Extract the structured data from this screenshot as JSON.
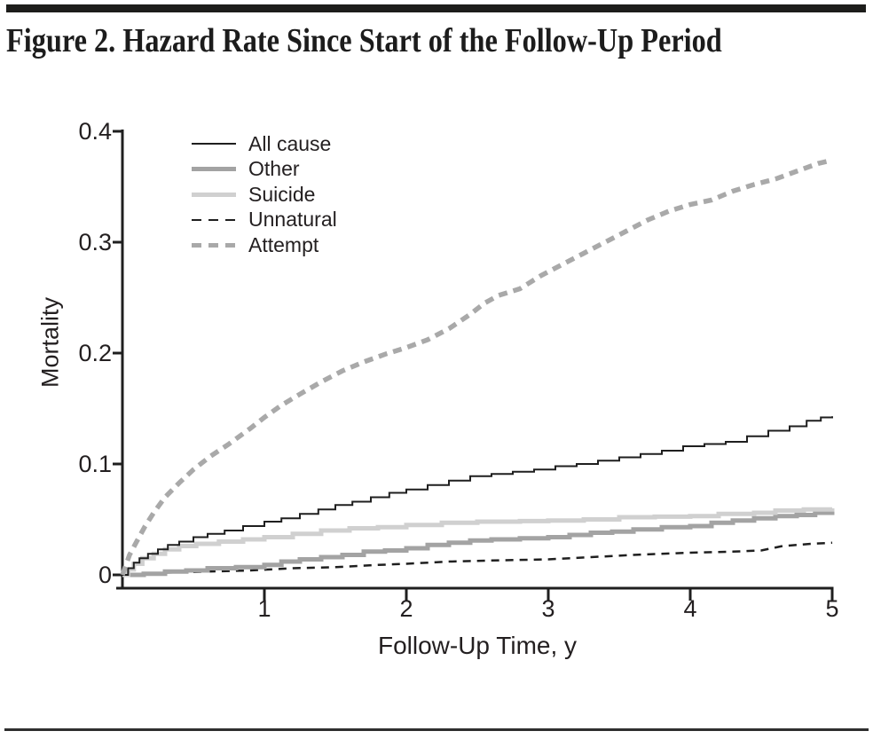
{
  "title": "Figure 2. Hazard Rate Since Start of the Follow-Up Period",
  "colors": {
    "text": "#231f20",
    "black_line": "#1f1f1f",
    "mid_gray_line": "#a3a3a3",
    "light_gray_line": "#d0d0d0",
    "dashed_gray_line": "#a9a9a9",
    "rule": "#1d1d1b"
  },
  "chart_data": {
    "type": "line",
    "title": "Figure 2. Hazard Rate Since Start of the Follow-Up Period",
    "xlabel": "Follow-Up Time, y",
    "ylabel": "Mortality",
    "xlim": [
      0,
      5
    ],
    "ylim": [
      0,
      0.4
    ],
    "grid": false,
    "legend_position": "inside top-left",
    "xticks": [
      1,
      2,
      3,
      4,
      5
    ],
    "xtick_labels": [
      "1",
      "2",
      "3",
      "4",
      "5"
    ],
    "yticks": [
      0,
      0.1,
      0.2,
      0.3,
      0.4
    ],
    "ytick_labels": [
      "0",
      "0.1",
      "0.2",
      "0.3",
      "0.4"
    ],
    "series": [
      {
        "name": "All cause",
        "color": "#1f1f1f",
        "width": 2,
        "dash": "",
        "mode": "step",
        "points": [
          [
            0,
            0
          ],
          [
            0.04,
            0.006
          ],
          [
            0.08,
            0.011
          ],
          [
            0.12,
            0.015
          ],
          [
            0.18,
            0.019
          ],
          [
            0.25,
            0.023
          ],
          [
            0.32,
            0.027
          ],
          [
            0.4,
            0.03
          ],
          [
            0.5,
            0.034
          ],
          [
            0.6,
            0.037
          ],
          [
            0.72,
            0.04
          ],
          [
            0.85,
            0.044
          ],
          [
            1.0,
            0.048
          ],
          [
            1.12,
            0.051
          ],
          [
            1.25,
            0.055
          ],
          [
            1.38,
            0.059
          ],
          [
            1.5,
            0.063
          ],
          [
            1.62,
            0.066
          ],
          [
            1.75,
            0.07
          ],
          [
            1.88,
            0.074
          ],
          [
            2.0,
            0.077
          ],
          [
            2.15,
            0.081
          ],
          [
            2.3,
            0.085
          ],
          [
            2.45,
            0.089
          ],
          [
            2.6,
            0.091
          ],
          [
            2.75,
            0.093
          ],
          [
            2.9,
            0.095
          ],
          [
            3.05,
            0.098
          ],
          [
            3.2,
            0.1
          ],
          [
            3.35,
            0.103
          ],
          [
            3.5,
            0.106
          ],
          [
            3.65,
            0.109
          ],
          [
            3.8,
            0.112
          ],
          [
            3.95,
            0.116
          ],
          [
            4.1,
            0.118
          ],
          [
            4.25,
            0.12
          ],
          [
            4.4,
            0.125
          ],
          [
            4.55,
            0.13
          ],
          [
            4.7,
            0.134
          ],
          [
            4.82,
            0.139
          ],
          [
            4.92,
            0.142
          ],
          [
            5.0,
            0.143
          ]
        ]
      },
      {
        "name": "Other",
        "color": "#a3a3a3",
        "width": 5,
        "dash": "",
        "mode": "step",
        "points": [
          [
            0,
            0
          ],
          [
            0.15,
            0.001
          ],
          [
            0.3,
            0.003
          ],
          [
            0.45,
            0.004
          ],
          [
            0.6,
            0.006
          ],
          [
            0.8,
            0.007
          ],
          [
            1.0,
            0.009
          ],
          [
            1.12,
            0.012
          ],
          [
            1.25,
            0.014
          ],
          [
            1.4,
            0.016
          ],
          [
            1.55,
            0.018
          ],
          [
            1.7,
            0.021
          ],
          [
            1.85,
            0.022
          ],
          [
            2.0,
            0.024
          ],
          [
            2.15,
            0.027
          ],
          [
            2.3,
            0.029
          ],
          [
            2.45,
            0.031
          ],
          [
            2.6,
            0.032
          ],
          [
            2.8,
            0.033
          ],
          [
            3.0,
            0.034
          ],
          [
            3.15,
            0.036
          ],
          [
            3.3,
            0.038
          ],
          [
            3.45,
            0.039
          ],
          [
            3.6,
            0.041
          ],
          [
            3.8,
            0.043
          ],
          [
            4.0,
            0.044
          ],
          [
            4.15,
            0.047
          ],
          [
            4.3,
            0.049
          ],
          [
            4.45,
            0.051
          ],
          [
            4.6,
            0.053
          ],
          [
            4.75,
            0.054
          ],
          [
            4.88,
            0.056
          ],
          [
            5.0,
            0.058
          ]
        ]
      },
      {
        "name": "Suicide",
        "color": "#d0d0d0",
        "width": 5,
        "dash": "",
        "mode": "step",
        "points": [
          [
            0,
            0
          ],
          [
            0.04,
            0.005
          ],
          [
            0.08,
            0.01
          ],
          [
            0.14,
            0.015
          ],
          [
            0.22,
            0.019
          ],
          [
            0.3,
            0.023
          ],
          [
            0.4,
            0.026
          ],
          [
            0.52,
            0.028
          ],
          [
            0.68,
            0.03
          ],
          [
            0.85,
            0.032
          ],
          [
            1.0,
            0.034
          ],
          [
            1.2,
            0.037
          ],
          [
            1.4,
            0.04
          ],
          [
            1.6,
            0.042
          ],
          [
            1.8,
            0.043
          ],
          [
            2.0,
            0.045
          ],
          [
            2.25,
            0.047
          ],
          [
            2.5,
            0.048
          ],
          [
            2.8,
            0.0485
          ],
          [
            3.0,
            0.049
          ],
          [
            3.25,
            0.05
          ],
          [
            3.5,
            0.052
          ],
          [
            3.75,
            0.0525
          ],
          [
            4.0,
            0.053
          ],
          [
            4.2,
            0.055
          ],
          [
            4.45,
            0.056
          ],
          [
            4.6,
            0.058
          ],
          [
            4.8,
            0.059
          ],
          [
            5.0,
            0.06
          ]
        ]
      },
      {
        "name": "Unnatural",
        "color": "#1f1f1f",
        "width": 2.5,
        "dash": "9 7",
        "mode": "line",
        "points": [
          [
            0,
            0
          ],
          [
            0.3,
            0.002
          ],
          [
            0.6,
            0.003
          ],
          [
            0.9,
            0.004
          ],
          [
            1.2,
            0.006
          ],
          [
            1.5,
            0.007
          ],
          [
            1.8,
            0.009
          ],
          [
            2.0,
            0.01
          ],
          [
            2.3,
            0.012
          ],
          [
            2.6,
            0.013
          ],
          [
            3.0,
            0.014
          ],
          [
            3.3,
            0.016
          ],
          [
            3.6,
            0.018
          ],
          [
            4.0,
            0.02
          ],
          [
            4.3,
            0.021
          ],
          [
            4.5,
            0.022
          ],
          [
            4.65,
            0.026
          ],
          [
            4.85,
            0.028
          ],
          [
            5.0,
            0.029
          ]
        ]
      },
      {
        "name": "Attempt",
        "color": "#a9a9a9",
        "width": 5.5,
        "dash": "10 7",
        "mode": "line",
        "points": [
          [
            0,
            0
          ],
          [
            0.05,
            0.018
          ],
          [
            0.1,
            0.03
          ],
          [
            0.16,
            0.044
          ],
          [
            0.22,
            0.056
          ],
          [
            0.3,
            0.07
          ],
          [
            0.4,
            0.083
          ],
          [
            0.5,
            0.095
          ],
          [
            0.62,
            0.107
          ],
          [
            0.75,
            0.118
          ],
          [
            0.9,
            0.132
          ],
          [
            1.0,
            0.142
          ],
          [
            1.12,
            0.153
          ],
          [
            1.25,
            0.163
          ],
          [
            1.4,
            0.174
          ],
          [
            1.55,
            0.184
          ],
          [
            1.7,
            0.192
          ],
          [
            1.85,
            0.199
          ],
          [
            2.0,
            0.205
          ],
          [
            2.15,
            0.212
          ],
          [
            2.3,
            0.222
          ],
          [
            2.45,
            0.235
          ],
          [
            2.55,
            0.245
          ],
          [
            2.65,
            0.252
          ],
          [
            2.8,
            0.258
          ],
          [
            2.95,
            0.27
          ],
          [
            3.1,
            0.28
          ],
          [
            3.25,
            0.29
          ],
          [
            3.4,
            0.3
          ],
          [
            3.55,
            0.31
          ],
          [
            3.7,
            0.32
          ],
          [
            3.85,
            0.328
          ],
          [
            4.0,
            0.334
          ],
          [
            4.15,
            0.338
          ],
          [
            4.3,
            0.346
          ],
          [
            4.45,
            0.352
          ],
          [
            4.6,
            0.357
          ],
          [
            4.75,
            0.364
          ],
          [
            4.9,
            0.371
          ],
          [
            5.0,
            0.374
          ]
        ]
      }
    ]
  }
}
